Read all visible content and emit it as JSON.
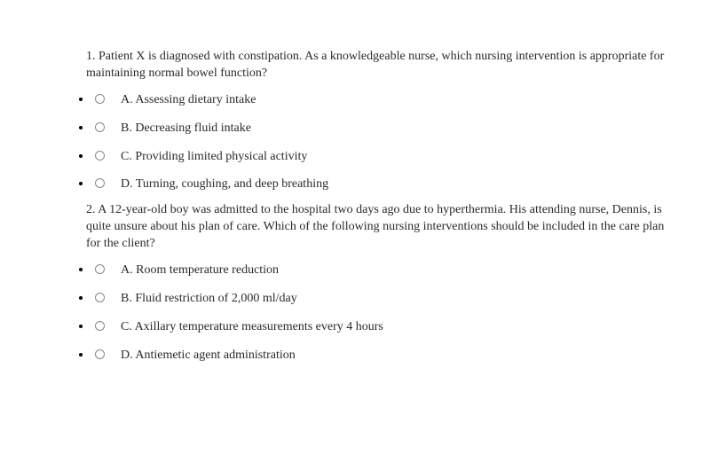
{
  "questions": [
    {
      "stem": "1. Patient X is diagnosed with constipation. As a knowledgeable nurse, which nursing intervention is appropriate for maintaining normal bowel function?",
      "options": [
        "A. Assessing dietary intake",
        "B. Decreasing fluid intake",
        "C. Providing limited physical activity",
        "D. Turning, coughing, and deep breathing"
      ]
    },
    {
      "stem": "2. A 12-year-old boy was admitted to the hospital two days ago due to hyperthermia. His attending nurse, Dennis, is quite unsure about his plan of care. Which of the following nursing interventions should be included in the care plan for the client?",
      "options": [
        "A. Room temperature reduction",
        "B. Fluid restriction of 2,000 ml/day",
        "C. Axillary temperature measurements every 4 hours",
        "D. Antiemetic agent administration"
      ]
    }
  ],
  "style": {
    "font_family": "Georgia, serif",
    "text_color": "#2a2a2a",
    "background": "#ffffff",
    "radio_border": "#888888",
    "bullet_color": "#000000",
    "stem_fontsize": 14,
    "option_fontsize": 14
  }
}
